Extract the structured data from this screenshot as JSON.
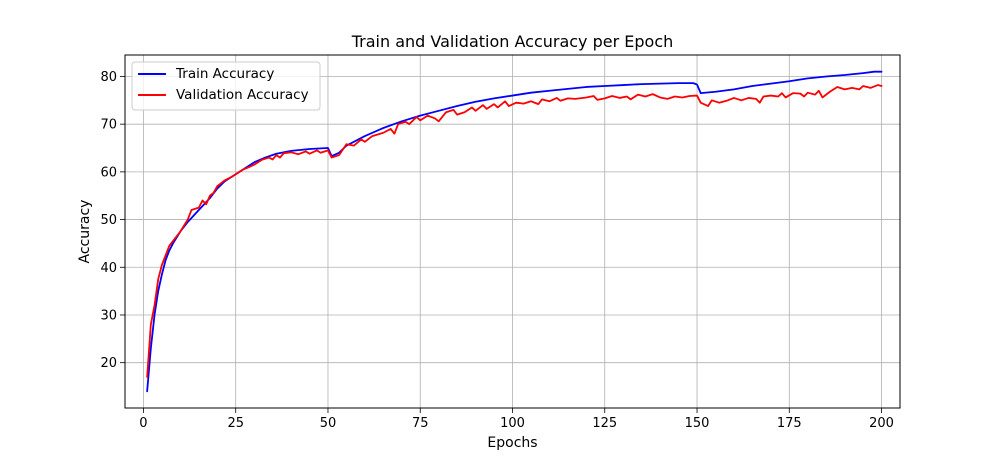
{
  "chart_data": {
    "type": "line",
    "title": "Train and Validation Accuracy per Epoch",
    "xlabel": "Epochs",
    "ylabel": "Accuracy",
    "xlim": [
      -5,
      205
    ],
    "ylim": [
      10.5,
      84.5
    ],
    "xticks": [
      0,
      25,
      50,
      75,
      100,
      125,
      150,
      175,
      200
    ],
    "yticks": [
      20,
      30,
      40,
      50,
      60,
      70,
      80
    ],
    "grid": true,
    "legend_position": "top-left",
    "series": [
      {
        "name": "Train Accuracy",
        "color": "#0000ff",
        "points": [
          [
            1,
            14.0
          ],
          [
            2,
            23.0
          ],
          [
            3,
            30.0
          ],
          [
            4,
            35.0
          ],
          [
            5,
            38.5
          ],
          [
            6,
            41.5
          ],
          [
            7,
            43.5
          ],
          [
            8,
            45.0
          ],
          [
            10,
            47.5
          ],
          [
            12,
            49.5
          ],
          [
            15,
            52.0
          ],
          [
            18,
            54.5
          ],
          [
            20,
            56.5
          ],
          [
            22,
            58.0
          ],
          [
            25,
            59.5
          ],
          [
            28,
            61.0
          ],
          [
            30,
            62.0
          ],
          [
            33,
            63.0
          ],
          [
            36,
            63.8
          ],
          [
            40,
            64.4
          ],
          [
            45,
            64.8
          ],
          [
            50,
            65.0
          ],
          [
            51,
            63.3
          ],
          [
            53,
            64.0
          ],
          [
            55,
            65.5
          ],
          [
            60,
            67.5
          ],
          [
            65,
            69.2
          ],
          [
            70,
            70.6
          ],
          [
            75,
            71.8
          ],
          [
            80,
            72.8
          ],
          [
            85,
            73.8
          ],
          [
            90,
            74.7
          ],
          [
            95,
            75.4
          ],
          [
            100,
            76.0
          ],
          [
            105,
            76.6
          ],
          [
            110,
            77.0
          ],
          [
            115,
            77.4
          ],
          [
            120,
            77.8
          ],
          [
            125,
            78.0
          ],
          [
            130,
            78.2
          ],
          [
            135,
            78.4
          ],
          [
            140,
            78.5
          ],
          [
            145,
            78.6
          ],
          [
            149,
            78.6
          ],
          [
            150,
            78.3
          ],
          [
            151,
            76.5
          ],
          [
            155,
            76.8
          ],
          [
            160,
            77.3
          ],
          [
            165,
            78.0
          ],
          [
            170,
            78.5
          ],
          [
            175,
            79.0
          ],
          [
            180,
            79.6
          ],
          [
            185,
            80.0
          ],
          [
            190,
            80.3
          ],
          [
            195,
            80.7
          ],
          [
            198,
            81.0
          ],
          [
            200,
            81.0
          ]
        ]
      },
      {
        "name": "Validation Accuracy",
        "color": "#ff0000",
        "points": [
          [
            1,
            17.0
          ],
          [
            2,
            28.0
          ],
          [
            3,
            32.0
          ],
          [
            4,
            37.5
          ],
          [
            5,
            40.5
          ],
          [
            6,
            42.5
          ],
          [
            7,
            44.5
          ],
          [
            8,
            45.5
          ],
          [
            10,
            47.5
          ],
          [
            12,
            50.0
          ],
          [
            13,
            52.0
          ],
          [
            15,
            52.5
          ],
          [
            16,
            54.0
          ],
          [
            17,
            53.2
          ],
          [
            18,
            55.0
          ],
          [
            19,
            55.6
          ],
          [
            20,
            57.0
          ],
          [
            22,
            58.2
          ],
          [
            24,
            59.0
          ],
          [
            25,
            59.5
          ],
          [
            27,
            60.5
          ],
          [
            28,
            60.8
          ],
          [
            30,
            61.5
          ],
          [
            32,
            62.5
          ],
          [
            34,
            63.0
          ],
          [
            35,
            62.6
          ],
          [
            36,
            63.5
          ],
          [
            37,
            63.0
          ],
          [
            38,
            63.9
          ],
          [
            40,
            64.1
          ],
          [
            42,
            63.7
          ],
          [
            44,
            64.3
          ],
          [
            45,
            63.8
          ],
          [
            47,
            64.5
          ],
          [
            48,
            64.0
          ],
          [
            50,
            64.5
          ],
          [
            51,
            63.0
          ],
          [
            53,
            63.5
          ],
          [
            55,
            65.8
          ],
          [
            57,
            65.5
          ],
          [
            59,
            66.8
          ],
          [
            60,
            66.3
          ],
          [
            62,
            67.5
          ],
          [
            65,
            68.2
          ],
          [
            67,
            69.0
          ],
          [
            68,
            68.0
          ],
          [
            69,
            70.0
          ],
          [
            71,
            70.5
          ],
          [
            72,
            70.0
          ],
          [
            74,
            71.5
          ],
          [
            75,
            70.8
          ],
          [
            77,
            71.8
          ],
          [
            79,
            71.2
          ],
          [
            80,
            70.6
          ],
          [
            82,
            72.5
          ],
          [
            84,
            73.0
          ],
          [
            85,
            72.0
          ],
          [
            87,
            72.5
          ],
          [
            89,
            73.5
          ],
          [
            90,
            72.8
          ],
          [
            92,
            74.0
          ],
          [
            93,
            73.2
          ],
          [
            95,
            74.2
          ],
          [
            96,
            73.5
          ],
          [
            98,
            74.8
          ],
          [
            99,
            73.8
          ],
          [
            101,
            74.5
          ],
          [
            103,
            74.3
          ],
          [
            105,
            74.8
          ],
          [
            107,
            74.2
          ],
          [
            108,
            75.2
          ],
          [
            110,
            74.8
          ],
          [
            112,
            75.5
          ],
          [
            113,
            74.9
          ],
          [
            115,
            75.4
          ],
          [
            117,
            75.3
          ],
          [
            120,
            75.6
          ],
          [
            122,
            75.9
          ],
          [
            123,
            75.1
          ],
          [
            125,
            75.4
          ],
          [
            127,
            75.9
          ],
          [
            129,
            75.5
          ],
          [
            131,
            75.8
          ],
          [
            132,
            75.2
          ],
          [
            134,
            76.2
          ],
          [
            136,
            75.8
          ],
          [
            138,
            76.3
          ],
          [
            140,
            75.6
          ],
          [
            142,
            75.3
          ],
          [
            144,
            75.8
          ],
          [
            146,
            75.6
          ],
          [
            148,
            75.9
          ],
          [
            150,
            76.0
          ],
          [
            151,
            74.5
          ],
          [
            153,
            73.8
          ],
          [
            154,
            75.0
          ],
          [
            156,
            74.5
          ],
          [
            158,
            74.9
          ],
          [
            160,
            75.5
          ],
          [
            162,
            75.0
          ],
          [
            164,
            75.5
          ],
          [
            166,
            75.3
          ],
          [
            167,
            74.5
          ],
          [
            168,
            75.8
          ],
          [
            170,
            76.0
          ],
          [
            172,
            75.8
          ],
          [
            173,
            76.5
          ],
          [
            174,
            75.6
          ],
          [
            176,
            76.5
          ],
          [
            178,
            76.4
          ],
          [
            179,
            75.8
          ],
          [
            180,
            76.6
          ],
          [
            182,
            76.2
          ],
          [
            183,
            77.0
          ],
          [
            184,
            75.6
          ],
          [
            186,
            76.8
          ],
          [
            188,
            77.8
          ],
          [
            190,
            77.3
          ],
          [
            192,
            77.6
          ],
          [
            194,
            77.3
          ],
          [
            195,
            78.0
          ],
          [
            197,
            77.6
          ],
          [
            199,
            78.2
          ],
          [
            200,
            78.0
          ]
        ]
      }
    ]
  }
}
